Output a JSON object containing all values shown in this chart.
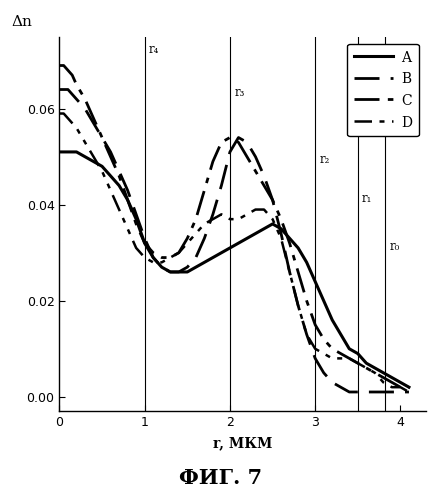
{
  "title": "ФИГ. 7",
  "xlabel": "r, МКМ",
  "ylabel": "Δn",
  "xlim": [
    0,
    4.3
  ],
  "ylim": [
    -0.003,
    0.075
  ],
  "yticks": [
    0,
    0.02,
    0.04,
    0.06
  ],
  "xticks": [
    0,
    1,
    2,
    3,
    4
  ],
  "vlines": [
    {
      "x": 1.0,
      "label": "r₄"
    },
    {
      "x": 2.0,
      "label": "r₃"
    },
    {
      "x": 3.0,
      "label": "r₂"
    },
    {
      "x": 3.5,
      "label": "r₁"
    },
    {
      "x": 3.82,
      "label": "r₀"
    }
  ],
  "A_x": [
    0.0,
    0.05,
    0.1,
    0.15,
    0.2,
    0.3,
    0.4,
    0.5,
    0.6,
    0.7,
    0.8,
    0.9,
    1.0,
    1.1,
    1.2,
    1.3,
    1.4,
    1.5,
    1.6,
    1.7,
    1.8,
    1.9,
    2.0,
    2.1,
    2.2,
    2.3,
    2.4,
    2.5,
    2.6,
    2.7,
    2.8,
    2.9,
    3.0,
    3.1,
    3.2,
    3.3,
    3.4,
    3.5,
    3.6,
    3.7,
    3.8,
    3.9,
    4.0,
    4.1
  ],
  "A_y": [
    0.051,
    0.051,
    0.051,
    0.051,
    0.051,
    0.05,
    0.049,
    0.048,
    0.046,
    0.044,
    0.041,
    0.037,
    0.032,
    0.029,
    0.027,
    0.026,
    0.026,
    0.026,
    0.027,
    0.028,
    0.029,
    0.03,
    0.031,
    0.032,
    0.033,
    0.034,
    0.035,
    0.036,
    0.035,
    0.033,
    0.031,
    0.028,
    0.024,
    0.02,
    0.016,
    0.013,
    0.01,
    0.009,
    0.007,
    0.006,
    0.005,
    0.004,
    0.003,
    0.002
  ],
  "B_x": [
    0.0,
    0.05,
    0.1,
    0.15,
    0.2,
    0.3,
    0.4,
    0.5,
    0.6,
    0.7,
    0.8,
    0.9,
    1.0,
    1.1,
    1.2,
    1.3,
    1.4,
    1.5,
    1.6,
    1.7,
    1.8,
    1.9,
    2.0,
    2.1,
    2.2,
    2.3,
    2.4,
    2.5,
    2.6,
    2.7,
    2.8,
    2.9,
    3.0,
    3.1,
    3.2,
    3.3,
    3.4,
    3.5,
    3.6,
    3.7,
    3.8,
    3.9,
    4.0,
    4.1
  ],
  "B_y": [
    0.064,
    0.064,
    0.064,
    0.063,
    0.062,
    0.06,
    0.057,
    0.054,
    0.051,
    0.047,
    0.043,
    0.038,
    0.033,
    0.029,
    0.027,
    0.026,
    0.026,
    0.027,
    0.029,
    0.033,
    0.038,
    0.044,
    0.051,
    0.054,
    0.053,
    0.05,
    0.046,
    0.041,
    0.034,
    0.026,
    0.019,
    0.013,
    0.008,
    0.005,
    0.003,
    0.002,
    0.001,
    0.001,
    0.001,
    0.001,
    0.001,
    0.001,
    0.001,
    0.001
  ],
  "C_x": [
    0.0,
    0.05,
    0.1,
    0.15,
    0.2,
    0.3,
    0.4,
    0.5,
    0.6,
    0.7,
    0.8,
    0.9,
    1.0,
    1.1,
    1.2,
    1.3,
    1.4,
    1.5,
    1.6,
    1.7,
    1.8,
    1.9,
    2.0,
    2.1,
    2.2,
    2.3,
    2.4,
    2.5,
    2.6,
    2.7,
    2.8,
    2.9,
    3.0,
    3.1,
    3.2,
    3.3,
    3.4,
    3.5,
    3.6,
    3.7,
    3.8,
    3.9,
    4.0,
    4.1
  ],
  "C_y": [
    0.069,
    0.069,
    0.068,
    0.067,
    0.065,
    0.062,
    0.058,
    0.054,
    0.05,
    0.046,
    0.041,
    0.036,
    0.032,
    0.03,
    0.029,
    0.029,
    0.03,
    0.033,
    0.037,
    0.043,
    0.049,
    0.053,
    0.054,
    0.053,
    0.05,
    0.047,
    0.044,
    0.041,
    0.037,
    0.032,
    0.026,
    0.02,
    0.015,
    0.012,
    0.01,
    0.009,
    0.008,
    0.007,
    0.006,
    0.005,
    0.004,
    0.003,
    0.002,
    0.002
  ],
  "D_x": [
    0.0,
    0.05,
    0.1,
    0.15,
    0.2,
    0.3,
    0.4,
    0.5,
    0.6,
    0.7,
    0.8,
    0.9,
    1.0,
    1.1,
    1.2,
    1.3,
    1.4,
    1.5,
    1.6,
    1.7,
    1.8,
    1.9,
    2.0,
    2.1,
    2.2,
    2.3,
    2.4,
    2.5,
    2.6,
    2.7,
    2.8,
    2.9,
    3.0,
    3.1,
    3.2,
    3.3,
    3.4,
    3.5,
    3.6,
    3.7,
    3.8,
    3.9,
    4.0,
    4.1
  ],
  "D_y": [
    0.059,
    0.059,
    0.058,
    0.057,
    0.056,
    0.053,
    0.05,
    0.047,
    0.043,
    0.039,
    0.035,
    0.031,
    0.029,
    0.028,
    0.028,
    0.029,
    0.03,
    0.032,
    0.034,
    0.036,
    0.037,
    0.038,
    0.037,
    0.037,
    0.038,
    0.039,
    0.039,
    0.037,
    0.033,
    0.026,
    0.019,
    0.013,
    0.01,
    0.009,
    0.008,
    0.008,
    0.008,
    0.007,
    0.006,
    0.005,
    0.003,
    0.002,
    0.002,
    0.001
  ],
  "background_color": "#ffffff"
}
